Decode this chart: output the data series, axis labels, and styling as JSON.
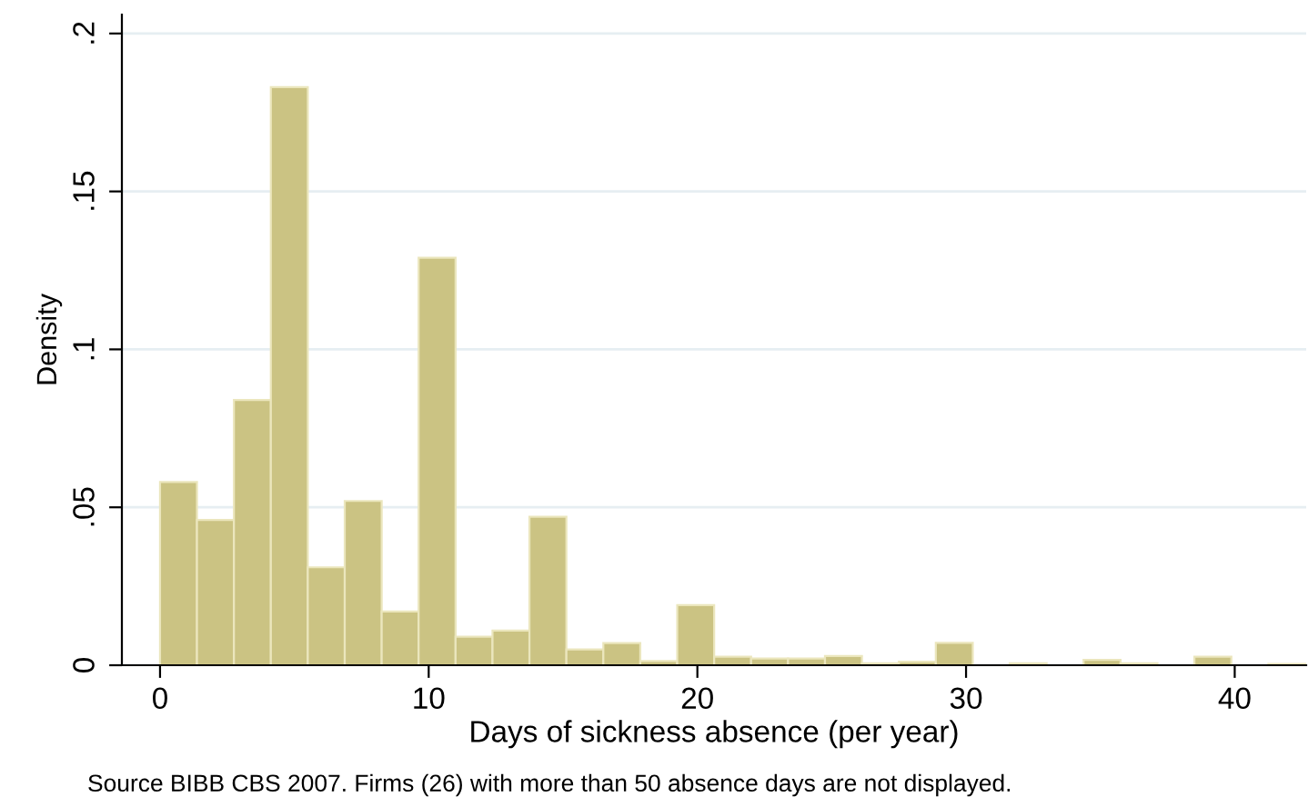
{
  "chart_data": {
    "type": "histogram",
    "xlabel": "Days of sickness absence (per year)",
    "ylabel": "Density",
    "bins": [
      0,
      1.375,
      2.75,
      4.125,
      5.5,
      6.875,
      8.25,
      9.625,
      11,
      12.375,
      13.75,
      15.125,
      16.5,
      17.875,
      19.25,
      20.625,
      22,
      23.375,
      24.75,
      26.125,
      27.5,
      28.875,
      30.25,
      31.625,
      33,
      34.375,
      35.75,
      37.125,
      38.5,
      39.875,
      41.25,
      42.625
    ],
    "values": [
      0.058,
      0.046,
      0.084,
      0.183,
      0.031,
      0.052,
      0.017,
      0.129,
      0.009,
      0.011,
      0.047,
      0.005,
      0.007,
      0.0013,
      0.019,
      0.0027,
      0.0021,
      0.0021,
      0.0029,
      0.0006,
      0.0011,
      0.0071,
      0,
      0.0006,
      0,
      0.0017,
      0.0006,
      0,
      0.0027,
      0,
      0.0004
    ],
    "color": "#cbc383",
    "xlim": [
      -1.42,
      42.66
    ],
    "xticks": [
      0,
      10,
      20,
      30,
      40
    ],
    "ylim": [
      0,
      0.206
    ],
    "yticks": [
      0,
      {
        "value": 0.05,
        "label": ".05"
      },
      {
        "value": 0.1,
        "label": ".1"
      },
      {
        "value": 0.15,
        "label": ".15"
      },
      {
        "value": 0.2,
        "label": ".2"
      }
    ],
    "grid": "y",
    "annotations": [
      "Source BIBB CBS 2007. Firms (26) with more than 50 absence days are not displayed."
    ]
  }
}
